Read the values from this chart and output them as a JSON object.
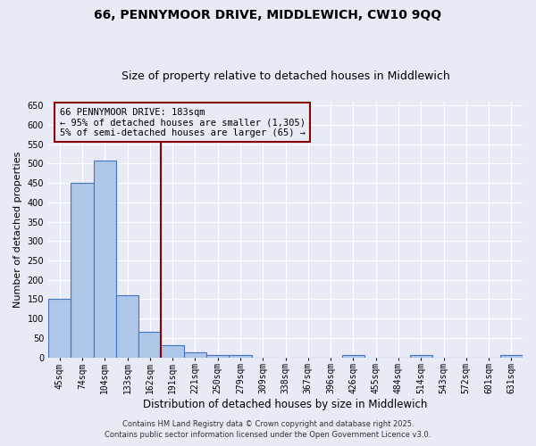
{
  "title_line1": "66, PENNYMOOR DRIVE, MIDDLEWICH, CW10 9QQ",
  "title_line2": "Size of property relative to detached houses in Middlewich",
  "xlabel": "Distribution of detached houses by size in Middlewich",
  "ylabel": "Number of detached properties",
  "categories": [
    "45sqm",
    "74sqm",
    "104sqm",
    "133sqm",
    "162sqm",
    "191sqm",
    "221sqm",
    "250sqm",
    "279sqm",
    "309sqm",
    "338sqm",
    "367sqm",
    "396sqm",
    "426sqm",
    "455sqm",
    "484sqm",
    "514sqm",
    "543sqm",
    "572sqm",
    "601sqm",
    "631sqm"
  ],
  "values": [
    150,
    450,
    507,
    160,
    67,
    32,
    13,
    7,
    5,
    0,
    0,
    0,
    0,
    5,
    0,
    0,
    5,
    0,
    0,
    0,
    5
  ],
  "bar_color": "#aec6e8",
  "bar_edge_color": "#4472c4",
  "bar_edge_width": 0.8,
  "vline_color": "#8B0000",
  "annotation_text": "66 PENNYMOOR DRIVE: 183sqm\n← 95% of detached houses are smaller (1,305)\n5% of semi-detached houses are larger (65) →",
  "annotation_box_color": "#8B0000",
  "ylim": [
    0,
    660
  ],
  "yticks": [
    0,
    50,
    100,
    150,
    200,
    250,
    300,
    350,
    400,
    450,
    500,
    550,
    600,
    650
  ],
  "background_color": "#e8eaf6",
  "grid_color": "#ffffff",
  "footer_line1": "Contains HM Land Registry data © Crown copyright and database right 2025.",
  "footer_line2": "Contains public sector information licensed under the Open Government Licence v3.0.",
  "title_fontsize": 10,
  "subtitle_fontsize": 9,
  "xlabel_fontsize": 8.5,
  "ylabel_fontsize": 8,
  "tick_fontsize": 7,
  "footer_fontsize": 6,
  "ann_fontsize": 7.5
}
